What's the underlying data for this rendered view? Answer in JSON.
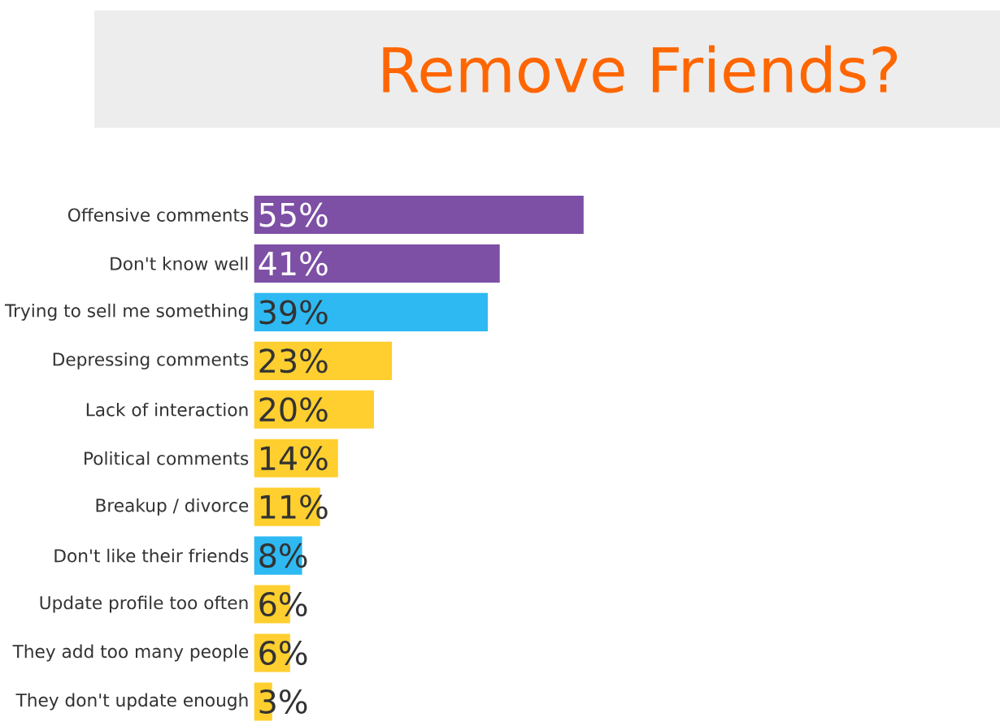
{
  "chart_data": {
    "type": "bar",
    "orientation": "horizontal",
    "title": "Remove Friends?",
    "categories": [
      "Offensive comments",
      "Don't know well",
      "Trying to sell me something",
      "Depressing comments",
      "Lack of interaction",
      "Political comments",
      "Breakup / divorce",
      "Don't like their friends",
      "Update profile too often",
      "They add too many people",
      "They don't update enough"
    ],
    "values": [
      55,
      41,
      39,
      23,
      20,
      14,
      11,
      8,
      6,
      6,
      3
    ],
    "value_labels": [
      "55%",
      "41%",
      "39%",
      "23%",
      "20%",
      "14%",
      "11%",
      "8%",
      "6%",
      "6%",
      "3%"
    ],
    "colors": [
      "#7d4fa5",
      "#7d4fa5",
      "#2eb9f2",
      "#ffcf2f",
      "#ffcf2f",
      "#ffcf2f",
      "#ffcf2f",
      "#2eb9f2",
      "#ffcf2f",
      "#ffcf2f",
      "#ffcf2f"
    ]
  }
}
